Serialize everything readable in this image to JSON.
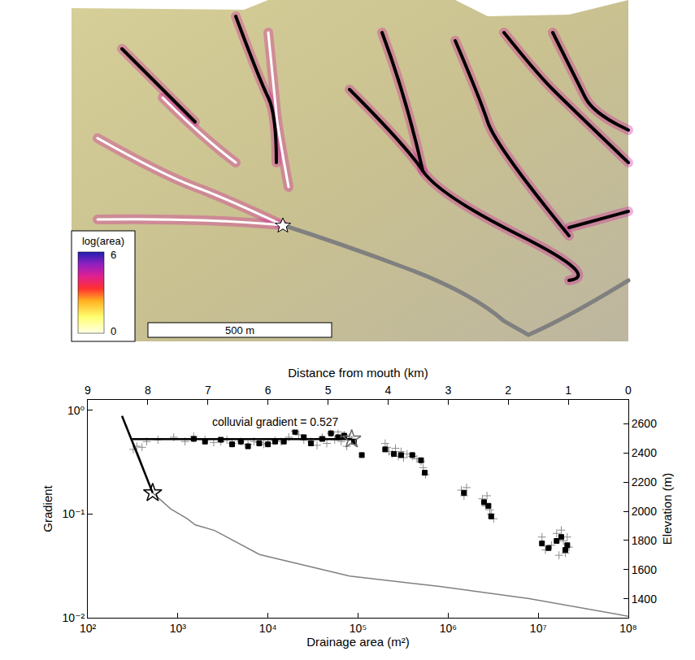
{
  "map": {
    "legend_title": "log(area)",
    "legend_max": 6,
    "legend_min": 0,
    "scale_bar": "500 m"
  },
  "chart_data": {
    "type": "scatter",
    "log": true,
    "grid": false,
    "x_label": "Drainage area (m²)",
    "y_label": "Gradient",
    "x2_label": "Distance from mouth (km)",
    "y2_label": "Elevation (m)",
    "xlim": [
      100,
      100000000
    ],
    "xticks": [
      {
        "value": 100,
        "label": "10²"
      },
      {
        "value": 1000,
        "label": "10³"
      },
      {
        "value": 10000,
        "label": "10⁴"
      },
      {
        "value": 100000,
        "label": "10⁵"
      },
      {
        "value": 1000000,
        "label": "10⁶"
      },
      {
        "value": 10000000,
        "label": "10⁷"
      },
      {
        "value": 100000000,
        "label": "10⁸"
      }
    ],
    "ylim": [
      0.01,
      1.26
    ],
    "yticks": [
      {
        "value": 0.01,
        "label": "10⁻²"
      },
      {
        "value": 0.1,
        "label": "10⁻¹"
      },
      {
        "value": 1,
        "label": "10⁰"
      }
    ],
    "x2lim": [
      9,
      0
    ],
    "x2ticks": [
      9,
      8,
      7,
      6,
      5,
      4,
      3,
      2,
      1,
      0
    ],
    "y2lim": [
      1270,
      2765
    ],
    "y2ticks": [
      1400,
      1600,
      1800,
      2000,
      2200,
      2400,
      2600
    ],
    "annotations": [
      {
        "text": "colluvial gradient = 0.527",
        "x": 12000,
        "y": 0.78
      }
    ],
    "series": [
      {
        "type": "line",
        "axis": "y2",
        "color": "#808080",
        "line_style": "solid",
        "x": [
          8.43,
          8.16,
          7.92,
          7.62,
          7.35,
          7.21,
          6.89,
          6.14,
          4.64,
          3.14,
          1.65,
          0
        ],
        "values": [
          2655,
          2391,
          2127,
          2017,
          1951,
          1907,
          1869,
          1704,
          1556,
          1485,
          1401,
          1280
        ]
      },
      {
        "type": "line",
        "axis": "y2",
        "color": "#000000",
        "line_style": "solid",
        "x": [
          8.43,
          7.92
        ],
        "values": [
          2655,
          2127
        ]
      },
      {
        "type": "scatter",
        "axis": "y2",
        "marker": "star",
        "color": "#000000",
        "x": [
          7.92
        ],
        "values": [
          2127
        ]
      },
      {
        "type": "scatter",
        "marker": "cross",
        "color": "#8c8c8c",
        "x": [
          320,
          350,
          400,
          450,
          600,
          900,
          1200,
          1500,
          2000,
          2500,
          3000,
          3500,
          4000,
          5000,
          6000,
          7000,
          8000,
          9000,
          10000,
          12000,
          14000,
          17000,
          20000,
          22000,
          25000,
          30000,
          35000,
          40000,
          45000,
          50000,
          55000,
          60000,
          65000,
          70000,
          75000,
          80000,
          85000,
          200000,
          210000,
          220000,
          240000,
          260000,
          280000,
          300000,
          320000,
          350000,
          400000,
          450000,
          500000,
          530000,
          560000,
          1400000,
          1500000,
          1600000,
          2400000,
          2600000,
          2700000,
          2900000,
          3000000,
          3200000,
          11000000,
          12000000,
          14000000,
          16000000,
          17000000,
          18000000,
          19000000,
          20000000,
          21000000,
          22000000
        ],
        "values": [
          0.42,
          0.45,
          0.44,
          0.5,
          0.52,
          0.55,
          0.5,
          0.56,
          0.52,
          0.49,
          0.5,
          0.52,
          0.48,
          0.5,
          0.47,
          0.5,
          0.49,
          0.47,
          0.48,
          0.51,
          0.5,
          0.55,
          0.63,
          0.58,
          0.52,
          0.5,
          0.46,
          0.55,
          0.48,
          0.6,
          0.52,
          0.62,
          0.5,
          0.58,
          0.45,
          0.55,
          0.52,
          0.48,
          0.44,
          0.4,
          0.38,
          0.43,
          0.36,
          0.4,
          0.35,
          0.38,
          0.36,
          0.34,
          0.32,
          0.28,
          0.24,
          0.17,
          0.15,
          0.18,
          0.14,
          0.12,
          0.15,
          0.11,
          0.1,
          0.09,
          0.06,
          0.045,
          0.05,
          0.065,
          0.04,
          0.07,
          0.055,
          0.042,
          0.06,
          0.048
        ]
      },
      {
        "type": "scatter",
        "marker": "square",
        "color": "#000000",
        "x": [
          1500,
          2000,
          3000,
          4000,
          5000,
          6000,
          8000,
          10000,
          12000,
          15000,
          20000,
          25000,
          30000,
          40000,
          50000,
          60000,
          70000,
          90000,
          110000,
          200000,
          250000,
          300000,
          400000,
          500000,
          550000,
          1500000,
          2500000,
          2800000,
          3000000,
          11000000,
          13000000,
          16000000,
          18000000,
          20000000,
          21000000
        ],
        "values": [
          0.53,
          0.5,
          0.52,
          0.47,
          0.5,
          0.45,
          0.48,
          0.47,
          0.5,
          0.5,
          0.62,
          0.55,
          0.48,
          0.53,
          0.6,
          0.55,
          0.57,
          0.5,
          0.37,
          0.42,
          0.38,
          0.37,
          0.37,
          0.33,
          0.25,
          0.16,
          0.13,
          0.12,
          0.095,
          0.052,
          0.047,
          0.055,
          0.06,
          0.045,
          0.05
        ]
      },
      {
        "type": "line",
        "color": "#000000",
        "line_style": "solid",
        "x": [
          300,
          85000
        ],
        "values": [
          0.527,
          0.527
        ]
      },
      {
        "type": "scatter",
        "marker": "star",
        "color": "#666666",
        "x": [
          85000
        ],
        "values": [
          0.527
        ]
      }
    ]
  }
}
